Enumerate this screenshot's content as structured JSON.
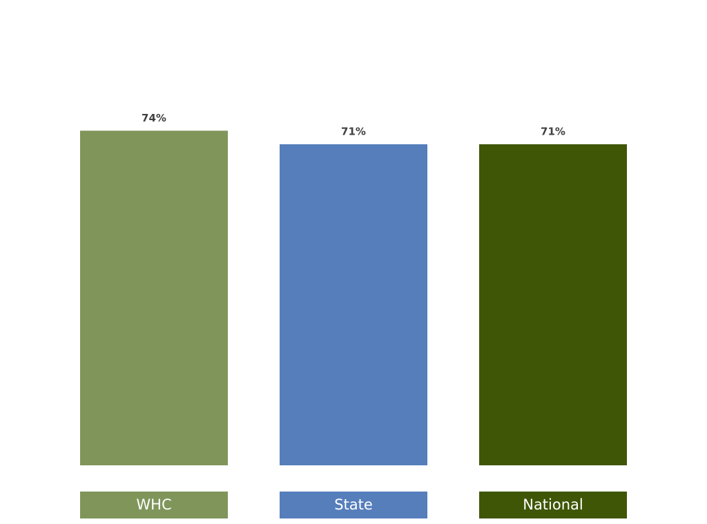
{
  "chart_data": {
    "type": "bar",
    "categories": [
      "WHC",
      "State",
      "National"
    ],
    "values": [
      74,
      71,
      71
    ],
    "value_labels": [
      "74%",
      "71%",
      "71%"
    ],
    "colors": [
      "#7f955a",
      "#557ebb",
      "#3f5606"
    ]
  }
}
